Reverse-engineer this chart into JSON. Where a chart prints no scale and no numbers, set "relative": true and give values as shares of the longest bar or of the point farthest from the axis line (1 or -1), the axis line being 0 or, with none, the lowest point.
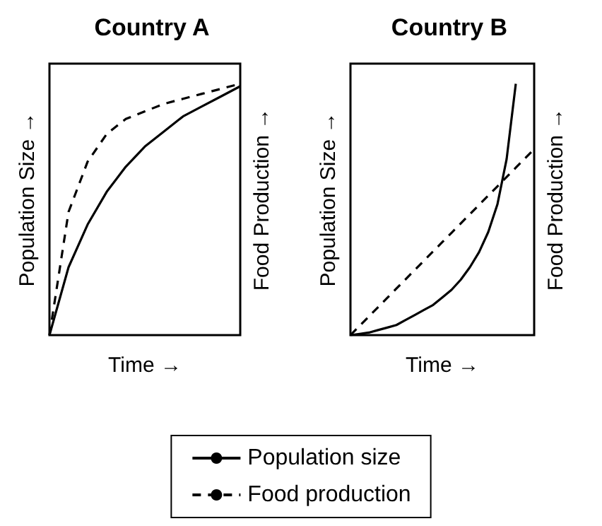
{
  "chart_data": [
    {
      "type": "line",
      "title": "Country A",
      "xlabel": "Time →",
      "ylabel": "Population Size →",
      "y2label": "Food Production →",
      "relative": true,
      "marker": "none",
      "legend": "bottom",
      "categories": [
        null,
        null,
        null,
        null,
        null,
        null,
        null,
        null,
        null,
        null,
        null
      ],
      "series": [
        {
          "name": "Population size",
          "color": "#000000",
          "line_style": "solid",
          "values": [
            0,
            0.27,
            0.44,
            0.57,
            0.67,
            0.75,
            0.81,
            0.87,
            0.91,
            0.95,
            0.99
          ]
        },
        {
          "name": "Food production",
          "color": "#000000",
          "line_style": "dashed",
          "values": [
            0,
            0.49,
            0.69,
            0.8,
            0.86,
            0.89,
            0.92,
            0.94,
            0.96,
            0.98,
            1
          ]
        }
      ]
    },
    {
      "type": "line",
      "title": "Country B",
      "xlabel": "Time →",
      "ylabel": "Population Size →",
      "y2label": "Food Production →",
      "relative": true,
      "marker": "none",
      "legend": false,
      "categories": [
        null,
        null,
        null,
        null,
        null,
        null,
        null,
        null,
        null,
        null,
        null,
        null,
        null,
        null,
        null,
        null,
        null,
        null,
        null,
        null,
        null
      ],
      "series": [
        {
          "color": "#000000",
          "line_style": "solid",
          "values": [
            0,
            0.005,
            0.01,
            0.02,
            0.03,
            0.04,
            0.06,
            0.08,
            0.1,
            0.12,
            0.15,
            0.18,
            0.22,
            0.27,
            0.33,
            0.41,
            0.52,
            0.7,
            1,
            null,
            null
          ]
        },
        {
          "color": "#000000",
          "line_style": "dashed",
          "values": [
            0,
            0.037,
            0.074,
            0.111,
            0.148,
            0.185,
            0.222,
            0.259,
            0.296,
            0.333,
            0.37,
            0.407,
            0.444,
            0.481,
            0.518,
            0.555,
            0.592,
            0.629,
            0.666,
            0.703,
            0.74
          ]
        }
      ]
    }
  ]
}
